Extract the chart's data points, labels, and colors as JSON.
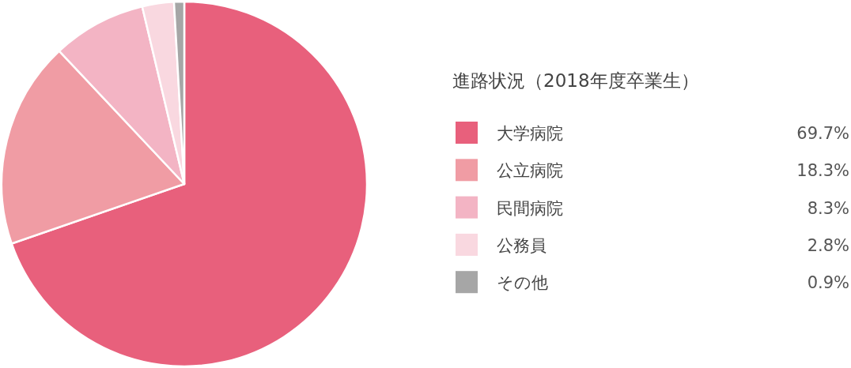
{
  "chart_data": {
    "type": "pie",
    "title": "進路状況（2018年度卒業生）",
    "categories": [
      "大学病院",
      "公立病院",
      "民間病院",
      "公務員",
      "その他"
    ],
    "values": [
      69.7,
      18.3,
      8.3,
      2.8,
      0.9
    ],
    "colors": [
      "#e8607c",
      "#f09ca4",
      "#f3b4c4",
      "#f9d8e0",
      "#a6a6a6"
    ],
    "value_labels": [
      "69.7%",
      "18.3%",
      "8.3%",
      "2.8%",
      "0.9%"
    ],
    "legend": "right"
  }
}
